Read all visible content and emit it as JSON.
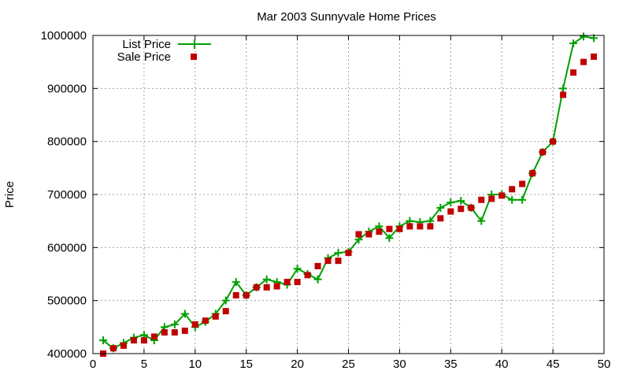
{
  "chart_data": {
    "type": "line",
    "title": "Mar 2003 Sunnyvale Home Prices",
    "xlabel": "",
    "ylabel": "Price",
    "xlim": [
      0,
      50
    ],
    "ylim": [
      400000,
      1000000
    ],
    "x_ticks": [
      0,
      5,
      10,
      15,
      20,
      25,
      30,
      35,
      40,
      45,
      50
    ],
    "y_ticks": [
      400000,
      500000,
      600000,
      700000,
      800000,
      900000,
      1000000
    ],
    "grid": true,
    "legend_position": "top-left",
    "x": [
      1,
      2,
      3,
      4,
      5,
      6,
      7,
      8,
      9,
      10,
      11,
      12,
      13,
      14,
      15,
      16,
      17,
      18,
      19,
      20,
      21,
      22,
      23,
      24,
      25,
      26,
      27,
      28,
      29,
      30,
      31,
      32,
      33,
      34,
      35,
      36,
      37,
      38,
      39,
      40,
      41,
      42,
      43,
      44,
      45,
      46,
      47,
      48,
      49
    ],
    "series": [
      {
        "name": "List Price",
        "style": "line-with-plus-markers",
        "color": "#00a000",
        "values": [
          425000,
          410000,
          420000,
          430000,
          435000,
          425000,
          450000,
          455000,
          475000,
          450000,
          460000,
          475000,
          500000,
          535000,
          510000,
          525000,
          540000,
          535000,
          530000,
          560000,
          550000,
          540000,
          580000,
          590000,
          592000,
          615000,
          630000,
          640000,
          618000,
          640000,
          650000,
          648000,
          650000,
          675000,
          685000,
          688000,
          675000,
          650000,
          700000,
          700000,
          690000,
          690000,
          740000,
          780000,
          800000,
          900000,
          985000,
          998000,
          995000
        ]
      },
      {
        "name": "Sale Price",
        "style": "square-markers",
        "color": "#c00000",
        "values": [
          400000,
          410000,
          415000,
          425000,
          425000,
          432000,
          440000,
          440000,
          443000,
          455000,
          462000,
          470000,
          480000,
          510000,
          510000,
          525000,
          525000,
          527000,
          535000,
          535000,
          548000,
          565000,
          575000,
          575000,
          590000,
          625000,
          625000,
          630000,
          635000,
          635000,
          640000,
          640000,
          640000,
          655000,
          668000,
          673000,
          675000,
          690000,
          692000,
          698000,
          710000,
          720000,
          740000,
          780000,
          800000,
          888000,
          930000,
          950000,
          960000
        ]
      }
    ]
  }
}
